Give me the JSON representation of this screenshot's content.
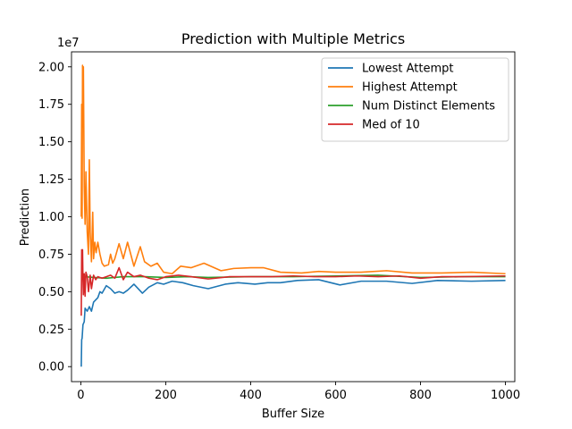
{
  "chart_data": {
    "type": "line",
    "title": "Prediction with Multiple Metrics",
    "xlabel": "Buffer Size",
    "ylabel": "Prediction",
    "y_offset_text": "1e7",
    "y_scale": 10000000,
    "xlim": [
      -22,
      1022
    ],
    "ylim": [
      -1000000,
      21000000
    ],
    "x_ticks": [
      0,
      200,
      400,
      600,
      800,
      1000
    ],
    "y_ticks": [
      0,
      2500000,
      5000000,
      7500000,
      10000000,
      12500000,
      15000000,
      17500000,
      20000000
    ],
    "y_tick_labels": [
      "0.00",
      "0.25",
      "0.50",
      "0.75",
      "1.00",
      "1.25",
      "1.50",
      "1.75",
      "2.00"
    ],
    "grid": false,
    "legend_position": "upper right",
    "series": [
      {
        "name": "Lowest Attempt",
        "color": "#1f77b4",
        "x": [
          1,
          2,
          3,
          5,
          8,
          10,
          15,
          20,
          25,
          30,
          40,
          45,
          50,
          60,
          70,
          80,
          90,
          100,
          110,
          125,
          145,
          160,
          180,
          195,
          215,
          240,
          265,
          300,
          340,
          370,
          410,
          440,
          470,
          510,
          560,
          610,
          660,
          720,
          780,
          840,
          920,
          1000
        ],
        "y": [
          0,
          1800000,
          1900000,
          2800000,
          3000000,
          3900000,
          3700000,
          4000000,
          3700000,
          4300000,
          4600000,
          5000000,
          4900000,
          5400000,
          5200000,
          4900000,
          5000000,
          4900000,
          5100000,
          5500000,
          4900000,
          5300000,
          5600000,
          5500000,
          5700000,
          5600000,
          5400000,
          5200000,
          5500000,
          5600000,
          5500000,
          5600000,
          5600000,
          5750000,
          5800000,
          5450000,
          5700000,
          5700000,
          5550000,
          5750000,
          5700000,
          5750000
        ]
      },
      {
        "name": "Highest Attempt",
        "color": "#ff7f0e",
        "x": [
          1,
          2,
          3,
          4,
          5,
          6,
          8,
          10,
          12,
          15,
          18,
          20,
          22,
          25,
          28,
          30,
          33,
          36,
          40,
          45,
          50,
          55,
          65,
          70,
          75,
          80,
          90,
          100,
          110,
          125,
          140,
          150,
          165,
          180,
          195,
          215,
          235,
          260,
          290,
          330,
          360,
          400,
          430,
          470,
          520,
          560,
          600,
          660,
          720,
          780,
          850,
          920,
          1000
        ],
        "y": [
          10000000,
          17500000,
          9900000,
          20100000,
          16000000,
          20000000,
          12000000,
          9500000,
          13000000,
          9000000,
          7500000,
          13800000,
          9000000,
          7000000,
          10300000,
          7200000,
          8300000,
          7600000,
          8300000,
          7500000,
          6900000,
          6700000,
          6800000,
          7500000,
          6900000,
          7200000,
          8200000,
          7200000,
          8300000,
          6700000,
          8000000,
          7000000,
          6700000,
          6900000,
          6300000,
          6200000,
          6700000,
          6600000,
          6900000,
          6400000,
          6550000,
          6600000,
          6600000,
          6300000,
          6250000,
          6350000,
          6300000,
          6300000,
          6400000,
          6250000,
          6250000,
          6300000,
          6200000
        ]
      },
      {
        "name": "Num Distinct Elements",
        "color": "#2ca02c",
        "x": [
          1,
          10,
          30,
          60,
          100,
          150,
          200,
          250,
          300,
          400,
          500,
          600,
          700,
          800,
          900,
          1000
        ],
        "y": [
          5800000,
          6000000,
          5950000,
          5900000,
          6000000,
          6000000,
          5950000,
          6000000,
          5950000,
          6000000,
          6000000,
          6050000,
          6100000,
          5950000,
          6000000,
          6000000
        ]
      },
      {
        "name": "Med of 10",
        "color": "#d62728",
        "x": [
          1,
          2,
          3,
          4,
          5,
          6,
          8,
          10,
          12,
          15,
          18,
          22,
          25,
          30,
          35,
          40,
          50,
          60,
          70,
          80,
          90,
          100,
          110,
          125,
          140,
          160,
          180,
          200,
          230,
          260,
          300,
          350,
          400,
          450,
          500,
          550,
          600,
          650,
          700,
          750,
          800,
          850,
          900,
          1000
        ],
        "y": [
          3400000,
          7800000,
          7200000,
          7800000,
          5800000,
          4800000,
          6200000,
          4700000,
          6300000,
          6000000,
          5000000,
          6100000,
          5200000,
          6100000,
          5800000,
          6000000,
          5900000,
          6000000,
          6100000,
          5900000,
          6600000,
          5800000,
          6300000,
          6000000,
          6100000,
          5900000,
          5800000,
          6000000,
          6100000,
          6000000,
          5850000,
          6000000,
          6000000,
          6000000,
          6050000,
          6000000,
          6000000,
          6050000,
          6000000,
          6050000,
          5900000,
          6000000,
          6000000,
          6050000
        ]
      }
    ]
  }
}
